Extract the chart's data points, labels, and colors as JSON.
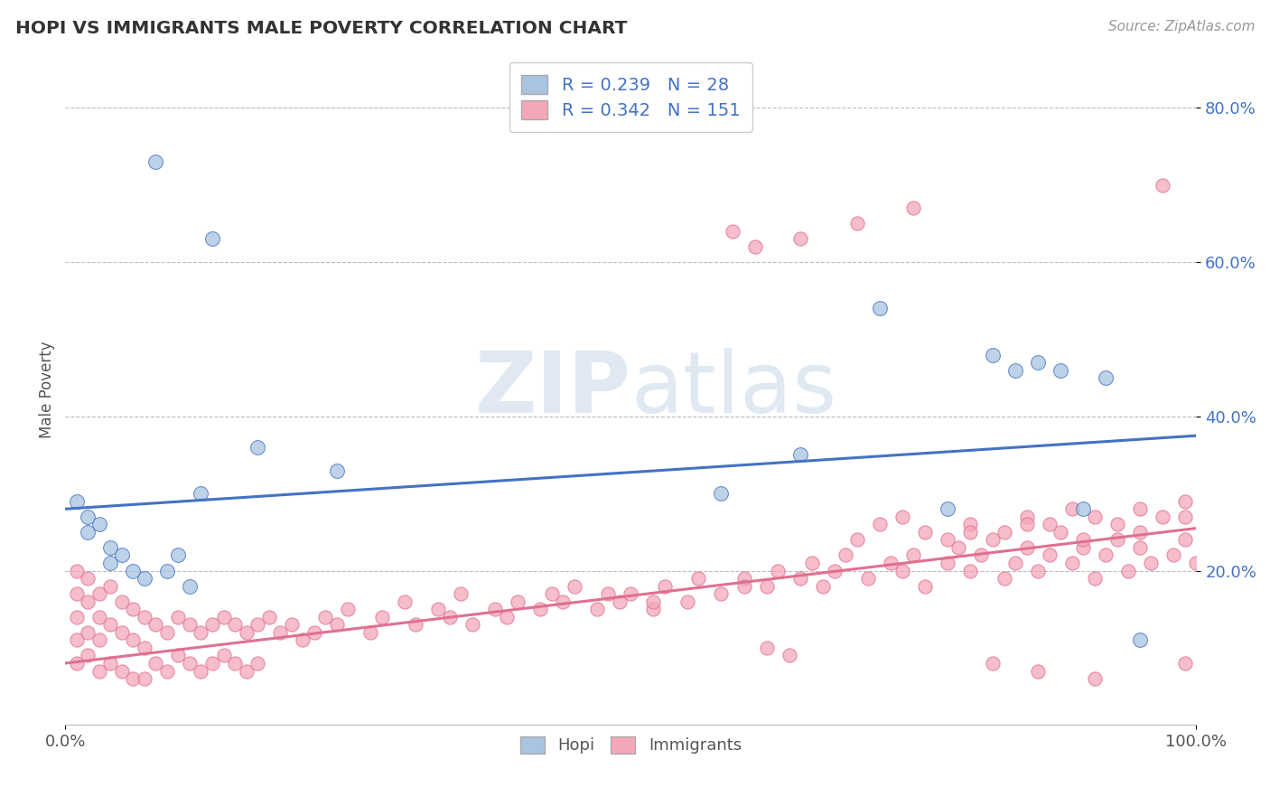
{
  "title": "HOPI VS IMMIGRANTS MALE POVERTY CORRELATION CHART",
  "source_text": "Source: ZipAtlas.com",
  "ylabel": "Male Poverty",
  "xlim": [
    0.0,
    1.0
  ],
  "ylim": [
    0.0,
    0.87
  ],
  "yticks": [
    0.2,
    0.4,
    0.6,
    0.8
  ],
  "ytick_labels": [
    "20.0%",
    "40.0%",
    "60.0%",
    "80.0%"
  ],
  "xticks": [
    0.0,
    1.0
  ],
  "xtick_labels": [
    "0.0%",
    "100.0%"
  ],
  "hopi_color": "#a8c4e0",
  "hopi_line_color": "#4472c4",
  "immigrants_color": "#f4a7b9",
  "immigrants_line_color": "#e07090",
  "hopi_R": 0.239,
  "hopi_N": 28,
  "immigrants_R": 0.342,
  "immigrants_N": 151,
  "hopi_line_x0": 0.0,
  "hopi_line_y0": 0.28,
  "hopi_line_x1": 1.0,
  "hopi_line_y1": 0.375,
  "imm_line_x0": 0.0,
  "imm_line_y0": 0.08,
  "imm_line_x1": 1.0,
  "imm_line_y1": 0.255,
  "hopi_x": [
    0.01,
    0.02,
    0.02,
    0.03,
    0.04,
    0.04,
    0.05,
    0.06,
    0.07,
    0.08,
    0.09,
    0.1,
    0.11,
    0.12,
    0.13,
    0.17,
    0.24,
    0.58,
    0.65,
    0.72,
    0.78,
    0.82,
    0.84,
    0.86,
    0.88,
    0.9,
    0.92,
    0.95
  ],
  "hopi_y": [
    0.29,
    0.27,
    0.25,
    0.26,
    0.23,
    0.21,
    0.22,
    0.2,
    0.19,
    0.73,
    0.2,
    0.22,
    0.18,
    0.3,
    0.63,
    0.36,
    0.33,
    0.3,
    0.35,
    0.54,
    0.28,
    0.48,
    0.46,
    0.47,
    0.46,
    0.28,
    0.45,
    0.11
  ],
  "imm_x": [
    0.01,
    0.01,
    0.01,
    0.01,
    0.01,
    0.02,
    0.02,
    0.02,
    0.02,
    0.03,
    0.03,
    0.03,
    0.03,
    0.04,
    0.04,
    0.04,
    0.05,
    0.05,
    0.05,
    0.06,
    0.06,
    0.06,
    0.07,
    0.07,
    0.07,
    0.08,
    0.08,
    0.09,
    0.09,
    0.1,
    0.1,
    0.11,
    0.11,
    0.12,
    0.12,
    0.13,
    0.13,
    0.14,
    0.14,
    0.15,
    0.15,
    0.16,
    0.16,
    0.17,
    0.17,
    0.18,
    0.19,
    0.2,
    0.21,
    0.22,
    0.23,
    0.24,
    0.25,
    0.27,
    0.28,
    0.3,
    0.31,
    0.33,
    0.34,
    0.35,
    0.36,
    0.38,
    0.39,
    0.4,
    0.42,
    0.43,
    0.44,
    0.45,
    0.47,
    0.48,
    0.49,
    0.5,
    0.52,
    0.53,
    0.55,
    0.56,
    0.58,
    0.59,
    0.6,
    0.62,
    0.63,
    0.65,
    0.66,
    0.67,
    0.68,
    0.69,
    0.7,
    0.71,
    0.73,
    0.74,
    0.75,
    0.76,
    0.78,
    0.79,
    0.8,
    0.81,
    0.82,
    0.83,
    0.84,
    0.85,
    0.86,
    0.87,
    0.88,
    0.89,
    0.9,
    0.91,
    0.92,
    0.93,
    0.94,
    0.95,
    0.96,
    0.97,
    0.98,
    0.99,
    1.0,
    0.52,
    0.6,
    0.7,
    0.72,
    0.74,
    0.76,
    0.78,
    0.8,
    0.83,
    0.85,
    0.87,
    0.89,
    0.91,
    0.93,
    0.95,
    0.97,
    0.99,
    0.61,
    0.65,
    0.75,
    0.8,
    0.85,
    0.9,
    0.95,
    0.99,
    0.62,
    0.64,
    0.82,
    0.86,
    0.91,
    0.99
  ],
  "imm_y": [
    0.2,
    0.17,
    0.14,
    0.11,
    0.08,
    0.19,
    0.16,
    0.12,
    0.09,
    0.17,
    0.14,
    0.11,
    0.07,
    0.18,
    0.13,
    0.08,
    0.16,
    0.12,
    0.07,
    0.15,
    0.11,
    0.06,
    0.14,
    0.1,
    0.06,
    0.13,
    0.08,
    0.12,
    0.07,
    0.14,
    0.09,
    0.13,
    0.08,
    0.12,
    0.07,
    0.13,
    0.08,
    0.14,
    0.09,
    0.13,
    0.08,
    0.12,
    0.07,
    0.13,
    0.08,
    0.14,
    0.12,
    0.13,
    0.11,
    0.12,
    0.14,
    0.13,
    0.15,
    0.12,
    0.14,
    0.16,
    0.13,
    0.15,
    0.14,
    0.17,
    0.13,
    0.15,
    0.14,
    0.16,
    0.15,
    0.17,
    0.16,
    0.18,
    0.15,
    0.17,
    0.16,
    0.17,
    0.15,
    0.18,
    0.16,
    0.19,
    0.17,
    0.64,
    0.19,
    0.18,
    0.2,
    0.19,
    0.21,
    0.18,
    0.2,
    0.22,
    0.65,
    0.19,
    0.21,
    0.2,
    0.22,
    0.18,
    0.21,
    0.23,
    0.2,
    0.22,
    0.24,
    0.19,
    0.21,
    0.23,
    0.2,
    0.22,
    0.25,
    0.21,
    0.23,
    0.19,
    0.22,
    0.24,
    0.2,
    0.23,
    0.21,
    0.7,
    0.22,
    0.24,
    0.21,
    0.16,
    0.18,
    0.24,
    0.26,
    0.27,
    0.25,
    0.24,
    0.26,
    0.25,
    0.27,
    0.26,
    0.28,
    0.27,
    0.26,
    0.28,
    0.27,
    0.29,
    0.62,
    0.63,
    0.67,
    0.25,
    0.26,
    0.24,
    0.25,
    0.27,
    0.1,
    0.09,
    0.08,
    0.07,
    0.06,
    0.08
  ]
}
